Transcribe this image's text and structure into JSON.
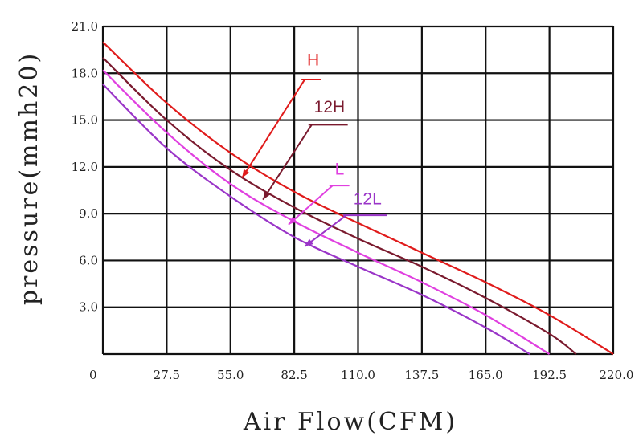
{
  "chart_data": {
    "type": "line",
    "xlabel": "Air Flow(CFM)",
    "ylabel": "pressure(mmh20)",
    "xlim": [
      0,
      220
    ],
    "ylim": [
      0,
      21
    ],
    "x_ticks": [
      "0",
      "27.5",
      "55.0",
      "82.5",
      "110.0",
      "137.5",
      "165.0",
      "192.5",
      "220.0"
    ],
    "y_ticks": [
      "3.0",
      "6.0",
      "9.0",
      "12.0",
      "15.0",
      "18.0",
      "21.0"
    ],
    "grid": true,
    "series": [
      {
        "name": "H",
        "color": "#e01b1b",
        "x": [
          0,
          27.5,
          55,
          82.5,
          110,
          137.5,
          165,
          192.5,
          220
        ],
        "y": [
          20.0,
          16.1,
          12.9,
          10.4,
          8.4,
          6.5,
          4.6,
          2.5,
          0.0
        ]
      },
      {
        "name": "12H",
        "color": "#7a1a2e",
        "x": [
          0,
          27.5,
          55,
          82.5,
          110,
          137.5,
          165,
          192.5,
          204
        ],
        "y": [
          19.0,
          15.0,
          11.8,
          9.4,
          7.4,
          5.6,
          3.6,
          1.3,
          0.0
        ]
      },
      {
        "name": "L",
        "color": "#e040e0",
        "x": [
          0,
          27.5,
          55,
          82.5,
          110,
          137.5,
          165,
          192.5
        ],
        "y": [
          18.2,
          14.2,
          10.9,
          8.5,
          6.5,
          4.6,
          2.5,
          0.0
        ]
      },
      {
        "name": "12L",
        "color": "#9a35c8",
        "x": [
          0,
          27.5,
          55,
          82.5,
          110,
          137.5,
          165,
          184
        ],
        "y": [
          17.3,
          13.2,
          10.1,
          7.5,
          5.6,
          3.8,
          1.7,
          0.0
        ]
      }
    ],
    "annotations": [
      {
        "series": "H",
        "label_at": [
          88,
          18.5
        ],
        "leader_from": [
          87,
          17.6
        ],
        "arrow_to": [
          60,
          11.3
        ]
      },
      {
        "series": "12H",
        "label_at": [
          91,
          15.5
        ],
        "leader_from": [
          90,
          14.7
        ],
        "arrow_to": [
          69,
          9.9
        ]
      },
      {
        "series": "L",
        "label_at": [
          100,
          11.5
        ],
        "leader_from": [
          99,
          10.8
        ],
        "arrow_to": [
          80,
          8.3
        ]
      },
      {
        "series": "12L",
        "label_at": [
          108,
          9.6
        ],
        "leader_from": [
          105,
          8.9
        ],
        "arrow_to": [
          87,
          6.9
        ]
      }
    ]
  }
}
